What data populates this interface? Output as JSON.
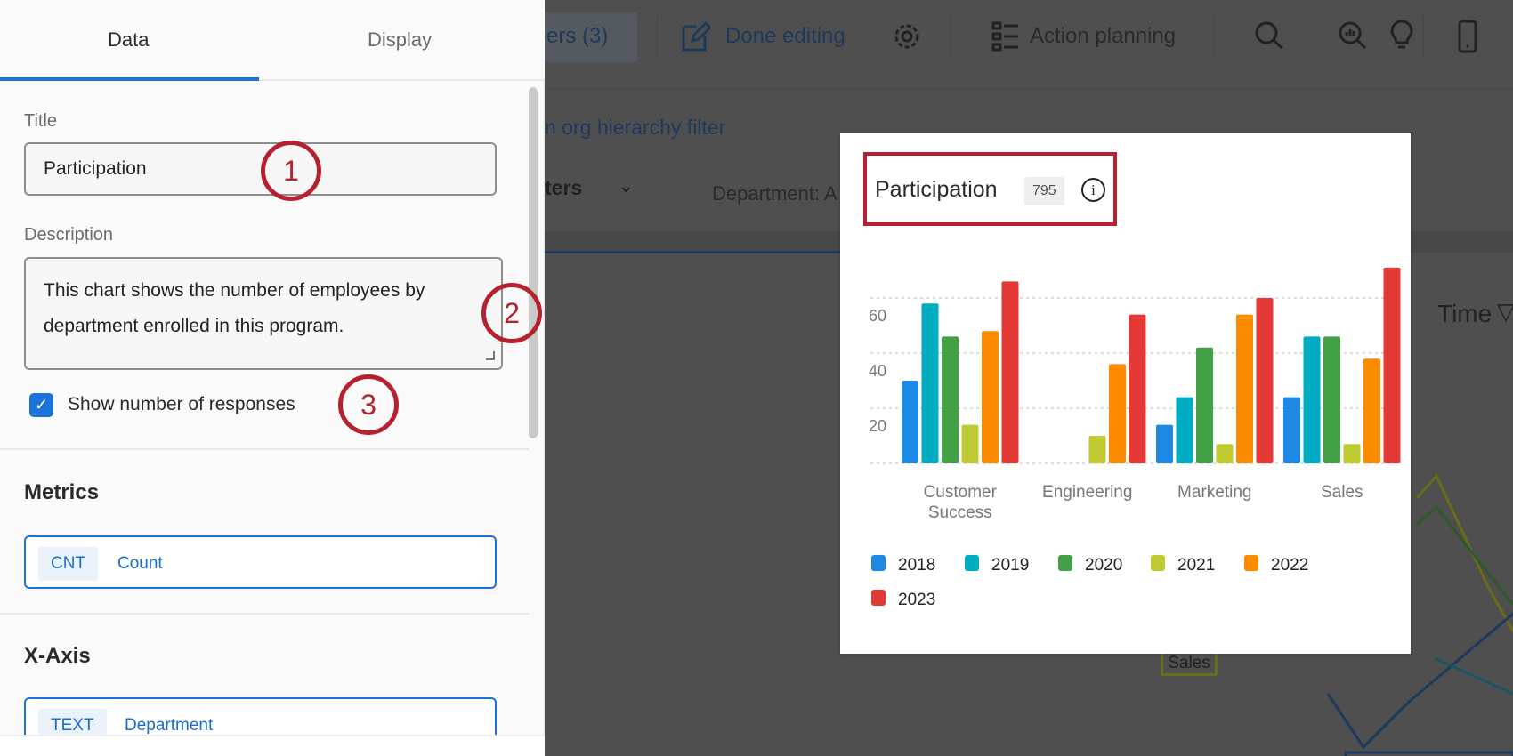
{
  "toolbar": {
    "filters_label": "ers (3)",
    "done_editing": "Done editing",
    "action_planning": "Action planning"
  },
  "dashboard": {
    "org_filter_link": "n org hierarchy filter",
    "filters_label": "ters",
    "department_filter": "Department: A",
    "time_label": "Time",
    "sales_tag": "Sales"
  },
  "panel": {
    "tabs": [
      {
        "label": "Data",
        "active": true
      },
      {
        "label": "Display",
        "active": false
      }
    ],
    "title_label": "Title",
    "title_value": "Participation",
    "description_label": "Description",
    "description_value": "This chart shows the number of employees by department enrolled in this program.",
    "show_responses_label": "Show number of responses",
    "show_responses_checked": true,
    "metrics_heading": "Metrics",
    "metric": {
      "tag": "CNT",
      "name": "Count"
    },
    "xaxis_heading": "X-Axis",
    "xaxis_field": {
      "tag": "TEXT",
      "name": "Department"
    }
  },
  "callouts": [
    "1",
    "2",
    "3"
  ],
  "card": {
    "title": "Participation",
    "response_count": "795"
  },
  "colors": {
    "accent": "#1a73d9",
    "callout": "#b5212f"
  },
  "chart_data": {
    "type": "bar",
    "categories": [
      [
        "Customer",
        "Success"
      ],
      [
        "Engineering"
      ],
      [
        "Marketing"
      ],
      [
        "Sales"
      ]
    ],
    "yticks": [
      "20",
      "40",
      "60"
    ],
    "ylim": [
      0,
      72
    ],
    "grid": true,
    "legend_position": "bottom",
    "series": [
      {
        "name": "2018",
        "color": "#1e88e5",
        "values": [
          30,
          0,
          14,
          24
        ]
      },
      {
        "name": "2019",
        "color": "#00acc1",
        "values": [
          58,
          0,
          24,
          46
        ]
      },
      {
        "name": "2020",
        "color": "#43a047",
        "values": [
          46,
          0,
          42,
          46
        ]
      },
      {
        "name": "2021",
        "color": "#c0ca33",
        "values": [
          14,
          10,
          7,
          7
        ]
      },
      {
        "name": "2022",
        "color": "#fb8c00",
        "values": [
          48,
          36,
          54,
          38
        ]
      },
      {
        "name": "2023",
        "color": "#e53935",
        "values": [
          66,
          54,
          60,
          71
        ]
      }
    ]
  }
}
